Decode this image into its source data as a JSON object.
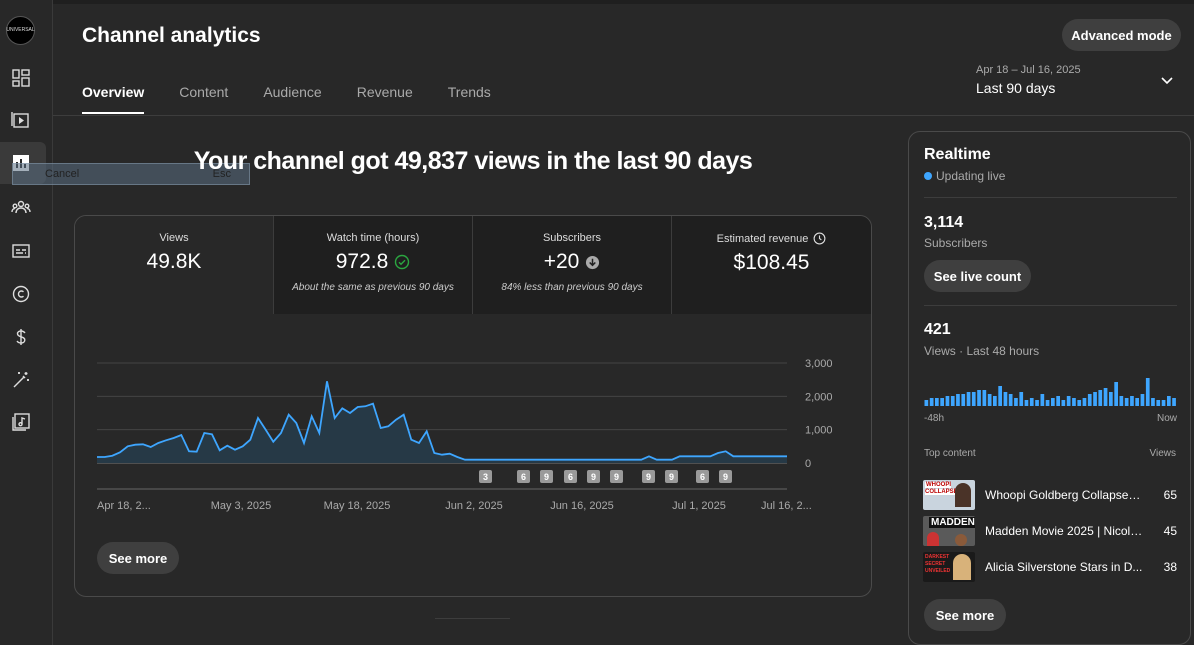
{
  "channel": {
    "avatar_text": "UNIVERSAL"
  },
  "overlay": {
    "cancel_label": "Cancel",
    "esc_label": "Esc"
  },
  "header": {
    "title": "Channel analytics",
    "advanced_mode_label": "Advanced mode"
  },
  "tabs": [
    {
      "label": "Overview",
      "active": true
    },
    {
      "label": "Content",
      "active": false
    },
    {
      "label": "Audience",
      "active": false
    },
    {
      "label": "Revenue",
      "active": false
    },
    {
      "label": "Trends",
      "active": false
    }
  ],
  "date_range": {
    "range": "Apr 18 – Jul 16, 2025",
    "label": "Last 90 days"
  },
  "headline": "Your channel got 49,837 views in the last 90 days",
  "metrics": [
    {
      "label": "Views",
      "value": "49.8K",
      "note": ""
    },
    {
      "label": "Watch time (hours)",
      "value": "972.8",
      "note": "About the same as previous 90 days",
      "status": "check"
    },
    {
      "label": "Subscribers",
      "value": "+20",
      "note": "84% less than previous 90 days",
      "status": "down"
    },
    {
      "label": "Estimated revenue",
      "value": "$108.45",
      "note": "",
      "status": "clock"
    }
  ],
  "chart_data": {
    "type": "area",
    "series": [
      {
        "values": [
          180,
          180,
          220,
          320,
          500,
          550,
          560,
          480,
          600,
          680,
          750,
          840,
          350,
          340,
          900,
          860,
          380,
          520,
          400,
          500,
          700,
          1350,
          1000,
          640,
          900,
          1450,
          1200,
          600,
          1400,
          900,
          2450,
          1350,
          1640,
          1500,
          1680,
          1700,
          1780,
          1050,
          1100,
          1300,
          1450,
          700,
          600,
          950,
          300,
          250,
          280,
          180,
          100,
          100,
          100,
          100,
          100,
          100,
          100,
          100,
          100,
          100,
          100,
          100,
          100,
          100,
          100,
          100,
          100,
          100,
          100,
          100,
          100,
          100,
          100,
          100,
          200,
          100,
          100,
          100,
          200,
          200,
          200,
          200,
          200,
          300,
          350,
          200,
          200,
          200,
          200,
          200,
          200,
          200,
          200
        ]
      }
    ],
    "x_tick_labels": [
      "Apr 18, 2...",
      "May 3, 2025",
      "May 18, 2025",
      "Jun 2, 2025",
      "Jun 16, 2025",
      "Jul 1, 2025",
      "Jul 16, 2..."
    ],
    "y_tick_labels": [
      "3,000",
      "2,000",
      "1,000",
      "0"
    ],
    "ylim": [
      0,
      3000
    ],
    "markers": [
      "3",
      "6",
      "9",
      "6",
      "9",
      "9",
      "9",
      "9",
      "6",
      "9"
    ],
    "colors": {
      "line": "#3ea6ff",
      "fill": "#263946"
    }
  },
  "see_more_label": "See more",
  "realtime": {
    "title": "Realtime",
    "status": "Updating live",
    "subscribers_value": "3,114",
    "subscribers_label": "Subscribers",
    "live_count_label": "See live count",
    "views_value": "421",
    "views_label": "Views · Last 48 hours",
    "bars": [
      3,
      4,
      4,
      4,
      5,
      5,
      6,
      6,
      7,
      7,
      8,
      8,
      6,
      5,
      10,
      7,
      6,
      4,
      7,
      3,
      4,
      3,
      6,
      3,
      4,
      5,
      3,
      5,
      4,
      3,
      4,
      6,
      7,
      8,
      9,
      7,
      12,
      5,
      4,
      5,
      4,
      6,
      14,
      4,
      3,
      3,
      5,
      4
    ],
    "axis_start": "-48h",
    "axis_end": "Now",
    "top_content_label": "Top content",
    "top_content_views_label": "Views",
    "top_content": [
      {
        "title": "Whoopi Goldberg Collapses ...",
        "views": "65",
        "thumb_text": "WHOOPI COLLAPSES"
      },
      {
        "title": "Madden Movie 2025 | Nicola...",
        "views": "45",
        "thumb_text": "MADDEN"
      },
      {
        "title": "Alicia Silverstone Stars in D...",
        "views": "38",
        "thumb_text": "DARKEST SECRET UNVEILED"
      }
    ],
    "see_more_label": "See more"
  }
}
